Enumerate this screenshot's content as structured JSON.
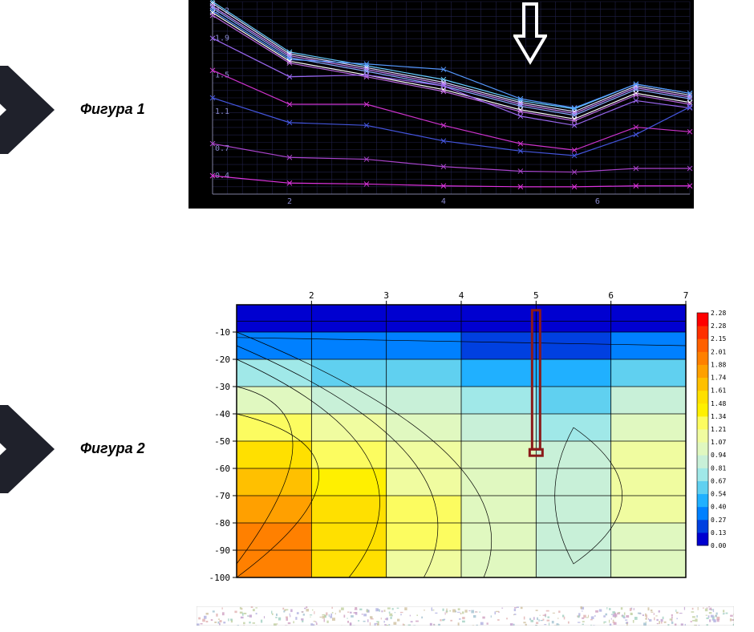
{
  "labels": {
    "fig1": "Фигура 1",
    "fig2": "Фигура 2"
  },
  "chevron": {
    "fill": "#1f212b"
  },
  "fig1": {
    "type": "line",
    "background": "#000000",
    "grid_color": "#202048",
    "axis_color": "#8080a0",
    "ylim": [
      0.2,
      2.3
    ],
    "xlim": [
      1,
      7.2
    ],
    "ytick_labels": [
      "0.4",
      "0.7",
      "1.1",
      "1.5",
      "1.9",
      "2.2"
    ],
    "ytick_vals": [
      0.4,
      0.7,
      1.1,
      1.5,
      1.9,
      2.2
    ],
    "xtick_vals": [
      2,
      4,
      6
    ],
    "xtick_labels": [
      "2",
      "4",
      "6"
    ],
    "label_fontsize": 10,
    "label_color": "#8888cc",
    "series": [
      {
        "color": "#66ccff",
        "y": [
          2.3,
          1.75,
          1.6,
          1.45,
          1.22,
          1.13,
          1.4,
          1.3
        ]
      },
      {
        "color": "#ddddff",
        "y": [
          2.28,
          1.73,
          1.58,
          1.42,
          1.2,
          1.1,
          1.38,
          1.28
        ]
      },
      {
        "color": "#cc88ff",
        "y": [
          2.25,
          1.71,
          1.56,
          1.4,
          1.18,
          1.08,
          1.36,
          1.26
        ]
      },
      {
        "color": "#88aaff",
        "y": [
          2.23,
          1.69,
          1.54,
          1.38,
          1.16,
          1.06,
          1.34,
          1.24
        ]
      },
      {
        "color": "#5599ff",
        "y": [
          2.2,
          1.67,
          1.62,
          1.56,
          1.24,
          1.14,
          1.4,
          1.3
        ]
      },
      {
        "color": "#ffffff",
        "y": [
          2.18,
          1.65,
          1.5,
          1.34,
          1.12,
          1.02,
          1.3,
          1.2
        ]
      },
      {
        "color": "#bb66dd",
        "y": [
          2.15,
          1.63,
          1.48,
          1.32,
          1.1,
          1.0,
          1.28,
          1.18
        ]
      },
      {
        "color": "#9966ee",
        "y": [
          1.9,
          1.48,
          1.5,
          1.38,
          1.05,
          0.95,
          1.22,
          1.14
        ]
      },
      {
        "color": "#cc33cc",
        "y": [
          1.55,
          1.18,
          1.18,
          0.95,
          0.75,
          0.68,
          0.93,
          0.88
        ]
      },
      {
        "color": "#4455dd",
        "y": [
          1.25,
          0.98,
          0.95,
          0.78,
          0.67,
          0.62,
          0.85,
          1.15
        ]
      },
      {
        "color": "#aa44cc",
        "y": [
          0.75,
          0.6,
          0.58,
          0.5,
          0.45,
          0.44,
          0.48,
          0.48
        ]
      },
      {
        "color": "#dd33dd",
        "y": [
          0.4,
          0.32,
          0.31,
          0.29,
          0.28,
          0.28,
          0.29,
          0.29
        ]
      }
    ],
    "series_x": [
      1,
      2,
      3,
      4,
      5,
      5.7,
      6.5,
      7.2
    ],
    "arrow": {
      "stroke": "#ffffff",
      "stroke_width": 4
    }
  },
  "fig2": {
    "type": "heatmap-contour",
    "background": "#ffffff",
    "axis_color": "#000000",
    "xlim": [
      1,
      7
    ],
    "ylim": [
      -100,
      0
    ],
    "xtick_vals": [
      2,
      3,
      4,
      5,
      6,
      7
    ],
    "xtick_labels": [
      "2",
      "3",
      "4",
      "5",
      "6",
      "7"
    ],
    "ytick_vals": [
      -10,
      -20,
      -30,
      -40,
      -50,
      -60,
      -70,
      -80,
      -90,
      -100
    ],
    "ytick_labels": [
      "-10",
      "-20",
      "-30",
      "-40",
      "-50",
      "-60",
      "-70",
      "-80",
      "-90",
      "-100"
    ],
    "label_fontsize": 11,
    "grid_color": "#000000",
    "marker": {
      "x": 5,
      "yTop": -2,
      "yBottom": -53,
      "color": "#8b1a1a",
      "width": 10
    },
    "colorbar": {
      "vals": [
        0.0,
        0.13,
        0.27,
        0.4,
        0.54,
        0.67,
        0.81,
        0.94,
        1.07,
        1.21,
        1.34,
        1.48,
        1.61,
        1.74,
        1.88,
        2.01,
        2.15,
        2.28
      ],
      "labels": [
        "0.00",
        "0.13",
        "0.27",
        "0.40",
        "0.54",
        "0.67",
        "0.81",
        "0.94",
        "1.07",
        "1.21",
        "1.34",
        "1.48",
        "1.61",
        "1.74",
        "1.88",
        "2.01",
        "2.15",
        "2.28"
      ],
      "colors": [
        "#0000d0",
        "#0040e0",
        "#0080ff",
        "#20b0ff",
        "#60d0f0",
        "#a0e8e8",
        "#c8f0d8",
        "#e0f8c0",
        "#f0fca0",
        "#fcfc60",
        "#fff000",
        "#ffe000",
        "#ffc000",
        "#ffa000",
        "#ff8000",
        "#ff6000",
        "#ff3000",
        "#ff0000"
      ],
      "fontsize": 8
    },
    "cells_x": [
      1,
      2,
      3,
      4,
      5,
      6,
      7
    ],
    "cells_y": [
      0,
      -10,
      -20,
      -30,
      -40,
      -50,
      -60,
      -70,
      -80,
      -90,
      -100
    ],
    "values": [
      [
        0.05,
        0.05,
        0.05,
        0.05,
        0.05,
        0.05
      ],
      [
        0.35,
        0.3,
        0.27,
        0.25,
        0.13,
        0.27
      ],
      [
        0.7,
        0.6,
        0.54,
        0.5,
        0.4,
        0.54
      ],
      [
        1.0,
        0.9,
        0.81,
        0.7,
        0.6,
        0.81
      ],
      [
        1.25,
        1.1,
        0.94,
        0.85,
        0.7,
        0.94
      ],
      [
        1.5,
        1.25,
        1.07,
        0.94,
        0.81,
        1.07
      ],
      [
        1.7,
        1.4,
        1.15,
        1.0,
        0.85,
        1.15
      ],
      [
        1.85,
        1.5,
        1.21,
        1.05,
        0.88,
        1.1
      ],
      [
        1.95,
        1.55,
        1.21,
        1.05,
        0.9,
        1.05
      ],
      [
        1.9,
        1.5,
        1.18,
        1.02,
        0.92,
        1.0
      ]
    ]
  },
  "noise": {
    "colors": [
      "#a0c0d0",
      "#c0a0d0",
      "#d0c0a0",
      "#a0d0c0",
      "#c0d0a0",
      "#d0a0c0",
      "#b0b0e0",
      "#e0b0b0"
    ]
  }
}
